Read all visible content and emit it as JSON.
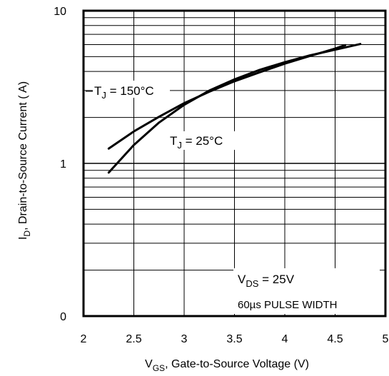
{
  "chart_data": {
    "type": "line",
    "yscale": "log",
    "xlim": [
      2,
      5
    ],
    "ylim": [
      0.1,
      10
    ],
    "x_ticks": [
      2,
      2.5,
      3,
      3.5,
      4,
      4.5,
      5
    ],
    "x_tick_labels": [
      "2",
      "2.5",
      "3",
      "3.5",
      "4",
      "4.5",
      "5"
    ],
    "y_tick_labels": [
      {
        "value": 10,
        "label": "10"
      },
      {
        "value": 1,
        "label": "1"
      },
      {
        "value": 0.1,
        "label": "0"
      }
    ],
    "grid": true,
    "ylabel": {
      "main": "I",
      "sub": "D",
      "rest": ", Drain-to-Source Current ( A)"
    },
    "xlabel": {
      "main": "V",
      "sub": "GS",
      "rest": ", Gate-to-Source Voltage (V)"
    },
    "series": [
      {
        "name": "TJ = 150°C",
        "label": {
          "main": "T",
          "sub": "J",
          "rest": " = 150°C"
        },
        "x": [
          2.25,
          2.5,
          2.75,
          3.0,
          3.25,
          3.5,
          3.75,
          4.0,
          4.25,
          4.5,
          4.6
        ],
        "y": [
          1.25,
          1.62,
          2.02,
          2.48,
          2.95,
          3.45,
          3.95,
          4.5,
          5.05,
          5.65,
          5.95
        ]
      },
      {
        "name": "TJ = 25°C",
        "label": {
          "main": "T",
          "sub": "J",
          "rest": " =  25°C"
        },
        "x": [
          2.25,
          2.5,
          2.75,
          3.0,
          3.25,
          3.5,
          3.75,
          4.0,
          4.25,
          4.5,
          4.75
        ],
        "y": [
          0.87,
          1.32,
          1.85,
          2.42,
          3.0,
          3.55,
          4.1,
          4.6,
          5.1,
          5.55,
          6.05
        ]
      }
    ],
    "annotations": [
      {
        "main": "V",
        "sub": "DS",
        "rest": " = 25V"
      },
      {
        "text": "60µs PULSE  WIDTH"
      }
    ]
  }
}
